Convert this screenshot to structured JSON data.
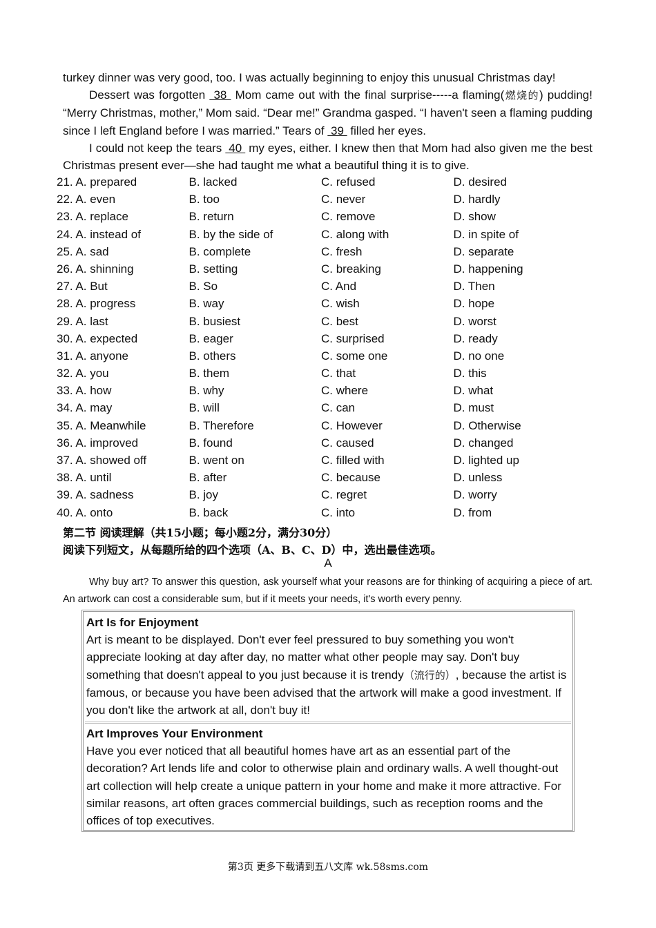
{
  "passage": {
    "p0": "turkey dinner was very good, too. I was actually beginning to enjoy this unusual Christmas day!",
    "p1_a": "Dessert was forgotten ",
    "b38": " 38 ",
    "p1_b": " Mom came out with the final surprise-----a flaming(",
    "p1_cn": "燃烧的",
    "p1_c": ") pudding! “Merry Christmas, mother,” Mom said. “Dear me!” Grandma gasped. “I haven't seen a flaming pudding since I left England before I was married.” Tears of ",
    "b39": " 39 ",
    "p1_d": " filled her eyes.",
    "p2_a": "I could not keep the tears ",
    "b40": " 40 ",
    "p2_b": " my eyes, either. I knew then that Mom had also given me the best Christmas present ever—she had taught me what a beautiful thing it is to give."
  },
  "options": [
    [
      "21. A. prepared",
      "B. lacked",
      "C. refused",
      "D. desired"
    ],
    [
      "22. A. even",
      "B. too",
      "C. never",
      "D. hardly"
    ],
    [
      "23. A. replace",
      "B. return",
      "C. remove",
      "D. show"
    ],
    [
      "24. A. instead of",
      "B. by the side of",
      "C. along with",
      "D. in spite of"
    ],
    [
      "25. A. sad",
      "B. complete",
      "C. fresh",
      "D. separate"
    ],
    [
      "26. A. shinning",
      "B. setting",
      "C. breaking",
      "D. happening"
    ],
    [
      "27. A. But",
      "B. So",
      "C. And",
      "D. Then"
    ],
    [
      "28. A. progress",
      "B. way",
      "C. wish",
      "D. hope"
    ],
    [
      "29. A. last",
      "B. busiest",
      "C. best",
      "D. worst"
    ],
    [
      "30. A. expected",
      "B. eager",
      "C. surprised",
      "D. ready"
    ],
    [
      "31. A. anyone",
      "B. others",
      "C. some one",
      "D. no one"
    ],
    [
      "32. A. you",
      "B. them",
      "C. that",
      "D. this"
    ],
    [
      "33. A. how",
      "B. why",
      "C. where",
      "D. what"
    ],
    [
      "34. A. may",
      "B. will",
      "C. can",
      "D. must"
    ],
    [
      "35. A. Meanwhile",
      "B. Therefore",
      "C. However",
      "D. Otherwise"
    ],
    [
      "36. A. improved",
      "B. found",
      "C. caused",
      "D. changed"
    ],
    [
      "37. A. showed off",
      "B. went on",
      "C. filled with",
      "D. lighted up"
    ],
    [
      "38. A. until",
      "B. after",
      "C. because",
      "D. unless"
    ],
    [
      "39. A. sadness",
      "B. joy",
      "C. regret",
      "D. worry"
    ],
    [
      "40. A. onto",
      "B. back",
      "C. into",
      "D. from"
    ]
  ],
  "section": {
    "title": "第二节 阅读理解（共15小题；每小题2分，满分30分）",
    "instruction": "阅读下列短文，从每题所给的四个选项（A、B、C、D）中，选出最佳选项。",
    "label": "A",
    "intro": "Why buy art? To answer this question, ask yourself what your reasons are for thinking of acquiring a piece of art. An artwork can cost a considerable sum, but if it meets your needs, it's worth every penny."
  },
  "box": {
    "h1": "Art Is for Enjoyment",
    "t1a": "Art is meant to be displayed. Don't ever feel pressured to buy something you won't appreciate looking at day after day, no matter what other people may say. Don't buy something that doesn't appeal to you just because it is trendy",
    "t1cn": "（流行的）",
    "t1b": ", because the artist is famous, or because you have been advised that the artwork will make a good investment. If you don't like the artwork at all, don't buy it!",
    "h2": "Art Improves Your Environment",
    "t2": "Have you ever noticed that all beautiful homes have art as an essential part of the decoration? Art lends life and color to otherwise plain and ordinary walls. A well thought-out art collection will help create a unique pattern in your home and make it more attractive. For similar reasons, art often graces commercial buildings, such as reception rooms and the offices of top executives."
  },
  "footer": "第3页 更多下载请到五八文库 wk.58sms.com"
}
